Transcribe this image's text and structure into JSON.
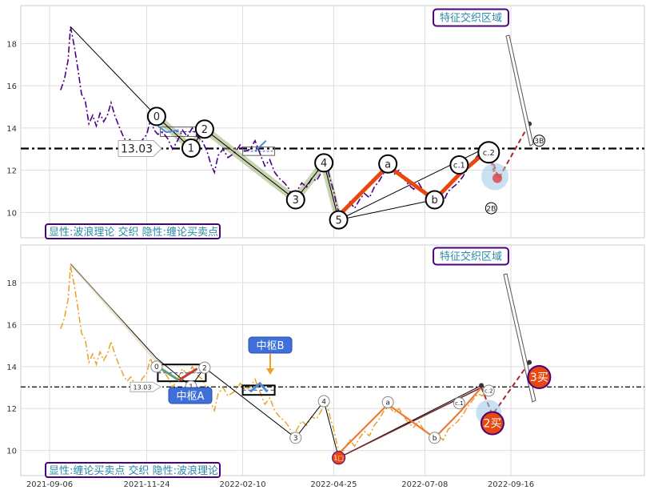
{
  "chart_data": [
    {
      "type": "line",
      "ylim": [
        8.8,
        19.8
      ],
      "yticks": [
        10,
        12,
        14,
        16,
        18
      ],
      "refline": 13.03,
      "refline_label": "13.03",
      "colors": {
        "price": "#4b0082",
        "wave": "#000000",
        "accent": "#e8470f",
        "zone": "#9aae6e",
        "dash": "#a52a2a"
      },
      "box_label": "特征交织区域",
      "footer": "显性:波浪理论 交织 隐性:缠论买卖点",
      "price": [
        [
          "2021-09-15",
          15.8
        ],
        [
          "2021-09-18",
          16.3
        ],
        [
          "2021-09-21",
          17.2
        ],
        [
          "2021-09-23",
          18.8
        ],
        [
          "2021-09-26",
          17.9
        ],
        [
          "2021-09-29",
          16.8
        ],
        [
          "2021-10-02",
          15.6
        ],
        [
          "2021-10-05",
          15.3
        ],
        [
          "2021-10-08",
          14.2
        ],
        [
          "2021-10-11",
          14.6
        ],
        [
          "2021-10-14",
          14.1
        ],
        [
          "2021-10-17",
          14.7
        ],
        [
          "2021-10-20",
          14.3
        ],
        [
          "2021-10-23",
          14.6
        ],
        [
          "2021-10-26",
          15.2
        ],
        [
          "2021-10-29",
          14.6
        ],
        [
          "2021-11-02",
          14.0
        ],
        [
          "2021-11-05",
          13.6
        ],
        [
          "2021-11-08",
          13.3
        ],
        [
          "2021-11-11",
          13.5
        ],
        [
          "2021-11-14",
          13.2
        ],
        [
          "2021-11-17",
          13.0
        ],
        [
          "2021-11-20",
          13.4
        ],
        [
          "2021-11-24",
          13.7
        ],
        [
          "2021-11-27",
          14.4
        ],
        [
          "2021-11-30",
          13.9
        ],
        [
          "2021-12-03",
          13.7
        ],
        [
          "2021-12-07",
          13.8
        ],
        [
          "2021-12-11",
          13.5
        ],
        [
          "2021-12-15",
          13.0
        ],
        [
          "2021-12-19",
          13.4
        ],
        [
          "2021-12-23",
          13.9
        ],
        [
          "2021-12-27",
          13.6
        ],
        [
          "2021-12-31",
          14.0
        ],
        [
          "2022-01-04",
          13.6
        ],
        [
          "2022-01-08",
          13.4
        ],
        [
          "2022-01-12",
          12.9
        ],
        [
          "2022-01-15",
          12.3
        ],
        [
          "2022-01-18",
          11.9
        ],
        [
          "2022-01-21",
          12.7
        ],
        [
          "2022-01-25",
          13.0
        ],
        [
          "2022-01-29",
          12.6
        ],
        [
          "2022-02-03",
          12.8
        ],
        [
          "2022-02-08",
          13.2
        ],
        [
          "2022-02-12",
          12.9
        ],
        [
          "2022-02-16",
          13.0
        ],
        [
          "2022-02-20",
          13.4
        ],
        [
          "2022-02-24",
          12.8
        ],
        [
          "2022-02-28",
          12.2
        ],
        [
          "2022-03-04",
          12.5
        ],
        [
          "2022-03-08",
          11.9
        ],
        [
          "2022-03-12",
          11.6
        ],
        [
          "2022-03-16",
          11.4
        ],
        [
          "2022-03-20",
          11.1
        ],
        [
          "2022-03-23",
          10.6
        ],
        [
          "2022-03-26",
          11.0
        ],
        [
          "2022-03-30",
          11.4
        ],
        [
          "2022-04-03",
          11.2
        ],
        [
          "2022-04-07",
          11.6
        ],
        [
          "2022-04-11",
          11.5
        ],
        [
          "2022-04-15",
          11.9
        ],
        [
          "2022-04-18",
          12.3
        ],
        [
          "2022-04-20",
          12.1
        ],
        [
          "2022-04-22",
          11.6
        ],
        [
          "2022-04-25",
          11.0
        ],
        [
          "2022-04-28",
          10.2
        ],
        [
          "2022-05-01",
          9.8
        ],
        [
          "2022-05-04",
          10.1
        ],
        [
          "2022-05-08",
          10.5
        ],
        [
          "2022-05-12",
          10.2
        ],
        [
          "2022-05-16",
          10.6
        ],
        [
          "2022-05-20",
          10.9
        ],
        [
          "2022-05-24",
          10.7
        ],
        [
          "2022-05-28",
          11.2
        ],
        [
          "2022-06-01",
          11.5
        ],
        [
          "2022-06-05",
          11.9
        ],
        [
          "2022-06-09",
          12.1
        ],
        [
          "2022-06-13",
          11.8
        ],
        [
          "2022-06-17",
          12.0
        ],
        [
          "2022-06-21",
          11.6
        ],
        [
          "2022-06-25",
          11.3
        ],
        [
          "2022-06-29",
          11.1
        ],
        [
          "2022-07-03",
          11.4
        ],
        [
          "2022-07-07",
          11.0
        ],
        [
          "2022-07-11",
          10.8
        ],
        [
          "2022-07-15",
          10.6
        ],
        [
          "2022-07-19",
          10.7
        ],
        [
          "2022-07-23",
          10.5
        ],
        [
          "2022-07-27",
          11.0
        ],
        [
          "2022-07-31",
          11.2
        ],
        [
          "2022-08-04",
          11.4
        ],
        [
          "2022-08-08",
          11.7
        ],
        [
          "2022-08-12",
          12.1
        ],
        [
          "2022-08-16",
          12.4
        ],
        [
          "2022-08-20",
          12.7
        ],
        [
          "2022-08-24",
          12.6
        ],
        [
          "2022-08-28",
          13.1
        ]
      ],
      "wave_labels": [
        {
          "text": "0",
          "x": "2021-12-02",
          "y": 14.55
        },
        {
          "text": "1",
          "x": "2021-12-30",
          "y": 13.05
        },
        {
          "text": "2",
          "x": "2022-01-10",
          "y": 13.95
        },
        {
          "text": "3",
          "x": "2022-03-25",
          "y": 10.6
        },
        {
          "text": "4",
          "x": "2022-04-17",
          "y": 12.35
        },
        {
          "text": "5",
          "x": "2022-04-29",
          "y": 9.65
        },
        {
          "text": "a",
          "x": "2022-06-08",
          "y": 12.3
        },
        {
          "text": "b",
          "x": "2022-07-16",
          "y": 10.6
        },
        {
          "text": "c.1",
          "x": "2022-08-05",
          "y": 12.25
        },
        {
          "text": "c.2",
          "x": "2022-08-29",
          "y": 12.85
        },
        {
          "text": "2B",
          "x": "2022-08-31",
          "y": 10.2
        },
        {
          "text": "3B",
          "x": "2022-10-09",
          "y": 13.4
        }
      ]
    },
    {
      "type": "line",
      "ylim": [
        8.8,
        19.8
      ],
      "yticks": [
        10,
        12,
        14,
        16,
        18
      ],
      "xticks": [
        "2021-09-06",
        "2021-11-24",
        "2022-02-10",
        "2022-04-25",
        "2022-07-08",
        "2022-09-16"
      ],
      "refline": 13.03,
      "refline_label": "13.03",
      "colors": {
        "price": "#e8a426",
        "wave": "#000000",
        "accent": "#ec7a3c",
        "zone": "#4a8dd6",
        "badge": "#e8470f",
        "badgeEdge": "#4b0082"
      },
      "box_label": "特征交织区域",
      "zhongshu_a": "中枢A",
      "zhongshu_b": "中枢B",
      "footer": "显性:缠论买卖点 交织 隐性:波浪理论",
      "wave_labels": [
        {
          "text": "0",
          "x": "2021-12-02",
          "y": 14.0
        },
        {
          "text": "1",
          "x": "2021-12-30",
          "y": 13.05
        },
        {
          "text": "2",
          "x": "2022-01-10",
          "y": 13.95
        },
        {
          "text": "3",
          "x": "2022-03-25",
          "y": 10.6
        },
        {
          "text": "4",
          "x": "2022-04-17",
          "y": 12.35
        },
        {
          "text": "a",
          "x": "2022-06-08",
          "y": 12.3
        },
        {
          "text": "b",
          "x": "2022-07-16",
          "y": 10.6
        },
        {
          "text": "c.1",
          "x": "2022-08-05",
          "y": 12.25
        },
        {
          "text": "c.2",
          "x": "2022-08-29",
          "y": 12.85
        }
      ],
      "buy_points": [
        {
          "text": "1□",
          "x": "2022-04-29",
          "y": 9.65
        },
        {
          "text": "2买",
          "x": "2022-09-01",
          "y": 11.3
        },
        {
          "text": "3买",
          "x": "2022-10-09",
          "y": 13.5
        }
      ]
    }
  ]
}
